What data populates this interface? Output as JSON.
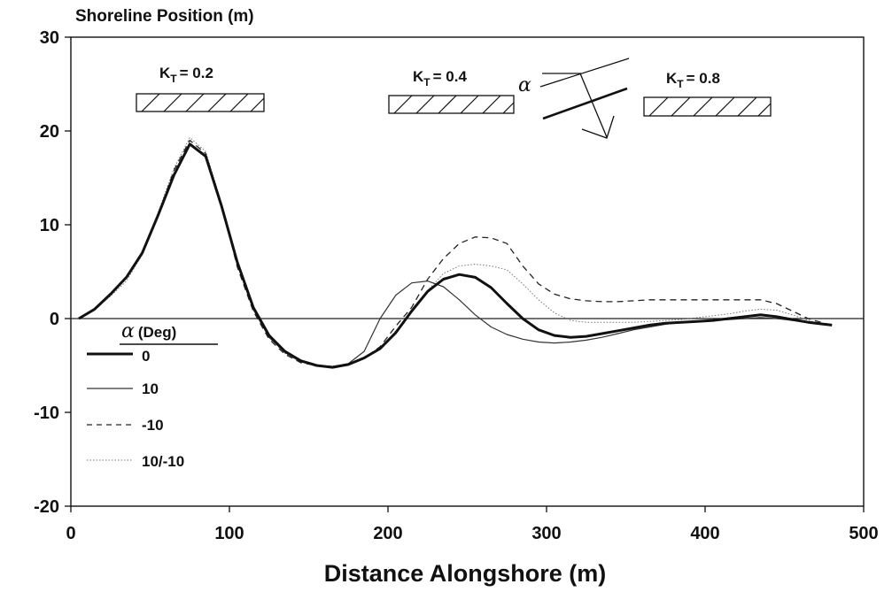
{
  "chart_data": {
    "type": "line",
    "xlabel": "Distance Alongshore (m)",
    "ylabel": "Shoreline Position (m)",
    "xlim": [
      0,
      500
    ],
    "ylim": [
      -20,
      30
    ],
    "xticks": [
      "0",
      "100",
      "200",
      "300",
      "400",
      "500"
    ],
    "yticks": [
      "30",
      "20",
      "10",
      "0",
      "-10",
      "-20"
    ],
    "grid": false,
    "legend": {
      "title_symbol": "α",
      "title": "(Deg)",
      "placement": "lower-left"
    },
    "annotations": {
      "kt_prefix": "K",
      "kt_sub": "T",
      "kt1": "= 0.2",
      "kt2": "= 0.4",
      "kt3": "= 0.8",
      "diagram_alpha": "α"
    },
    "series": [
      {
        "name": "0",
        "style": "bold",
        "x": [
          5,
          15,
          25,
          35,
          45,
          55,
          65,
          75,
          85,
          95,
          105,
          115,
          125,
          135,
          145,
          155,
          165,
          175,
          185,
          195,
          205,
          215,
          225,
          235,
          245,
          255,
          265,
          275,
          285,
          295,
          305,
          315,
          325,
          335,
          345,
          355,
          365,
          375,
          385,
          395,
          405,
          415,
          425,
          435,
          445,
          455,
          465,
          475,
          480
        ],
        "y": [
          0,
          1,
          2.6,
          4.4,
          7,
          11,
          15.3,
          18.6,
          17.3,
          12,
          6,
          1.2,
          -1.8,
          -3.5,
          -4.5,
          -5,
          -5.2,
          -4.9,
          -4.2,
          -3.2,
          -1.5,
          0.8,
          2.9,
          4.2,
          4.7,
          4.4,
          3.3,
          1.6,
          0,
          -1.2,
          -1.8,
          -2,
          -1.9,
          -1.6,
          -1.3,
          -1,
          -0.7,
          -0.5,
          -0.4,
          -0.3,
          -0.2,
          0,
          0.2,
          0.4,
          0.2,
          -0.1,
          -0.4,
          -0.6,
          -0.7
        ]
      },
      {
        "name": "10",
        "style": "thin",
        "x": [
          5,
          15,
          25,
          35,
          45,
          55,
          65,
          75,
          85,
          95,
          105,
          115,
          125,
          135,
          145,
          155,
          165,
          175,
          185,
          195,
          205,
          215,
          225,
          235,
          245,
          255,
          265,
          275,
          285,
          295,
          305,
          315,
          325,
          335,
          345,
          355,
          365,
          375,
          385,
          395,
          405,
          415,
          425,
          435,
          445,
          455,
          465,
          475,
          480
        ],
        "y": [
          0,
          1,
          2.6,
          4.4,
          7,
          11,
          15.3,
          18.5,
          17.2,
          11.8,
          5.8,
          1,
          -2,
          -3.6,
          -4.6,
          -5,
          -5.1,
          -4.8,
          -3.5,
          0,
          2.5,
          3.8,
          4,
          3.4,
          2,
          0.4,
          -0.9,
          -1.7,
          -2.2,
          -2.5,
          -2.6,
          -2.5,
          -2.3,
          -2,
          -1.6,
          -1.2,
          -0.9,
          -0.6,
          -0.4,
          -0.3,
          -0.2,
          -0.1,
          0,
          0.1,
          0,
          -0.2,
          -0.4,
          -0.6,
          -0.7
        ]
      },
      {
        "name": "-10",
        "style": "dashed",
        "x": [
          5,
          15,
          25,
          35,
          45,
          55,
          65,
          75,
          85,
          95,
          105,
          115,
          125,
          135,
          145,
          155,
          165,
          175,
          185,
          195,
          205,
          215,
          225,
          235,
          245,
          255,
          265,
          275,
          285,
          295,
          305,
          315,
          325,
          335,
          345,
          355,
          365,
          375,
          385,
          395,
          405,
          415,
          425,
          435,
          445,
          455,
          465,
          475,
          480
        ],
        "y": [
          0,
          1,
          2.6,
          4.4,
          7,
          11,
          15.8,
          19,
          17.6,
          12.2,
          5.5,
          0.8,
          -2.2,
          -3.8,
          -4.7,
          -5,
          -5.1,
          -4.9,
          -4.2,
          -3,
          -0.8,
          1.2,
          4.2,
          6.4,
          8,
          8.7,
          8.6,
          8,
          5.6,
          3.7,
          2.6,
          2.1,
          1.9,
          1.8,
          1.8,
          1.9,
          2,
          2,
          2,
          2,
          2,
          2,
          2,
          2,
          1.6,
          0.8,
          0,
          -0.5,
          -0.7
        ]
      },
      {
        "name": "10/-10",
        "style": "dotted",
        "x": [
          5,
          15,
          25,
          35,
          45,
          55,
          65,
          75,
          85,
          95,
          105,
          115,
          125,
          135,
          145,
          155,
          165,
          175,
          185,
          195,
          205,
          215,
          225,
          235,
          245,
          255,
          265,
          275,
          285,
          295,
          305,
          315,
          325,
          335,
          345,
          355,
          365,
          375,
          385,
          395,
          405,
          415,
          425,
          435,
          445,
          455,
          465,
          475,
          480
        ],
        "y": [
          0,
          1,
          2.4,
          4,
          6.8,
          11.3,
          16,
          19.3,
          17.8,
          12.3,
          6,
          1.2,
          -2,
          -3.7,
          -4.6,
          -5,
          -5.1,
          -4.9,
          -4.3,
          -3.2,
          -1.3,
          0.8,
          3,
          4.8,
          5.6,
          5.8,
          5.6,
          5.2,
          3.7,
          2,
          0.6,
          -0.2,
          -0.4,
          -0.4,
          -0.4,
          -0.4,
          -0.3,
          -0.2,
          -0.1,
          0.1,
          0.3,
          0.5,
          0.8,
          1,
          0.9,
          0.4,
          -0.2,
          -0.6,
          -0.7
        ]
      }
    ]
  }
}
